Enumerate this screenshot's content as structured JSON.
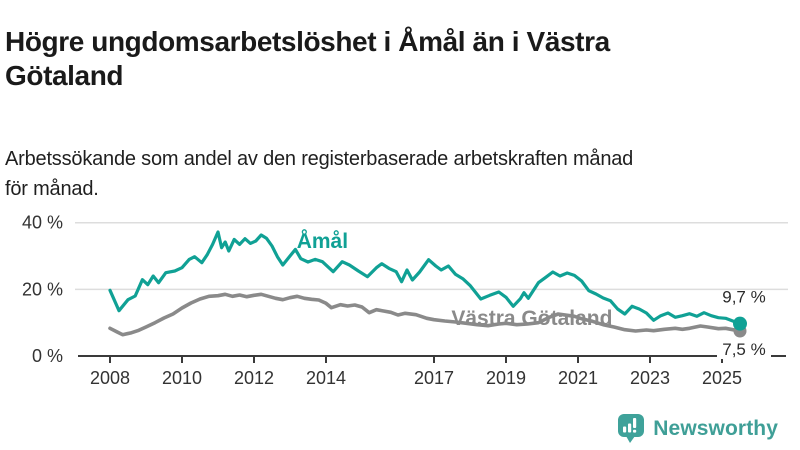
{
  "header": {
    "title": "Högre ungdomsarbetslöshet i Åmål än i Västra Götaland",
    "title_lines": [
      "Högre ungdomsarbetslöshet i Åmål än i Västra",
      "Götaland"
    ],
    "subtitle": "Arbetssökande som andel av den registerbaserade arbetskraften månad för månad.",
    "subtitle_lines": [
      "Arbetssökande som andel av den registerbaserade arbetskraften månad",
      "för månad."
    ]
  },
  "chart_data": {
    "type": "line",
    "title": "Högre ungdomsarbetslöshet i Åmål än i Västra Götaland",
    "xlabel": "",
    "ylabel": "",
    "unit": "%",
    "grid": "horizontal",
    "legend_position": "inline-labels",
    "xlim": [
      2007.3,
      2026.8
    ],
    "ylim": [
      0,
      43
    ],
    "x_ticks": [
      2008,
      2010,
      2012,
      2014,
      2017,
      2019,
      2021,
      2023,
      2025
    ],
    "y_ticks": [
      {
        "value": 0,
        "label": "0 %",
        "gridline": false
      },
      {
        "value": 20,
        "label": "20 %",
        "gridline": true
      },
      {
        "value": 40,
        "label": "40 %",
        "gridline": true
      }
    ],
    "colors": {
      "amal": "#10a195",
      "vastra_gotaland": "#8a8a8a",
      "axis": "#3a3a3a",
      "gridline": "#dddddd",
      "tick_text": "#333333",
      "value_text": "#2b2b2b"
    },
    "series": [
      {
        "name": "Åmål",
        "color": "#10a195",
        "label_pos": {
          "year": 2013.9,
          "pct": 32.4
        },
        "end_label": "9,7 %",
        "end_value": 9.7,
        "points": [
          [
            2008.0,
            19.7
          ],
          [
            2008.25,
            13.6
          ],
          [
            2008.5,
            16.9
          ],
          [
            2008.7,
            18.0
          ],
          [
            2008.9,
            22.9
          ],
          [
            2009.05,
            21.4
          ],
          [
            2009.2,
            24.0
          ],
          [
            2009.35,
            22.0
          ],
          [
            2009.55,
            25.0
          ],
          [
            2009.8,
            25.5
          ],
          [
            2010.0,
            26.5
          ],
          [
            2010.2,
            29.0
          ],
          [
            2010.35,
            29.8
          ],
          [
            2010.55,
            28.0
          ],
          [
            2010.7,
            30.4
          ],
          [
            2010.85,
            33.5
          ],
          [
            2011.0,
            37.2
          ],
          [
            2011.1,
            32.5
          ],
          [
            2011.2,
            34.2
          ],
          [
            2011.3,
            31.5
          ],
          [
            2011.45,
            35.0
          ],
          [
            2011.6,
            33.5
          ],
          [
            2011.75,
            35.2
          ],
          [
            2011.9,
            33.8
          ],
          [
            2012.05,
            34.5
          ],
          [
            2012.2,
            36.3
          ],
          [
            2012.35,
            35.3
          ],
          [
            2012.5,
            33.0
          ],
          [
            2012.65,
            29.8
          ],
          [
            2012.8,
            27.3
          ],
          [
            2013.0,
            30.0
          ],
          [
            2013.15,
            32.0
          ],
          [
            2013.3,
            29.2
          ],
          [
            2013.5,
            28.2
          ],
          [
            2013.7,
            29.0
          ],
          [
            2013.9,
            28.3
          ],
          [
            2014.05,
            26.8
          ],
          [
            2014.2,
            25.3
          ],
          [
            2014.45,
            28.3
          ],
          [
            2014.65,
            27.3
          ],
          [
            2014.9,
            25.5
          ],
          [
            2015.15,
            23.8
          ],
          [
            2015.4,
            26.5
          ],
          [
            2015.55,
            27.7
          ],
          [
            2015.75,
            26.3
          ],
          [
            2015.95,
            25.3
          ],
          [
            2016.1,
            22.3
          ],
          [
            2016.25,
            25.8
          ],
          [
            2016.4,
            22.8
          ],
          [
            2016.6,
            25.2
          ],
          [
            2016.85,
            28.9
          ],
          [
            2017.05,
            27.0
          ],
          [
            2017.2,
            25.8
          ],
          [
            2017.4,
            27.0
          ],
          [
            2017.6,
            24.5
          ],
          [
            2017.8,
            23.2
          ],
          [
            2018.0,
            21.2
          ],
          [
            2018.3,
            17.1
          ],
          [
            2018.55,
            18.2
          ],
          [
            2018.8,
            19.2
          ],
          [
            2019.0,
            17.6
          ],
          [
            2019.2,
            14.9
          ],
          [
            2019.4,
            17.2
          ],
          [
            2019.5,
            19.0
          ],
          [
            2019.62,
            17.3
          ],
          [
            2019.9,
            22.0
          ],
          [
            2020.1,
            23.6
          ],
          [
            2020.3,
            25.2
          ],
          [
            2020.5,
            24.0
          ],
          [
            2020.7,
            24.9
          ],
          [
            2020.9,
            24.2
          ],
          [
            2021.1,
            22.5
          ],
          [
            2021.3,
            19.6
          ],
          [
            2021.5,
            18.6
          ],
          [
            2021.7,
            17.4
          ],
          [
            2021.9,
            16.6
          ],
          [
            2022.1,
            14.1
          ],
          [
            2022.3,
            12.6
          ],
          [
            2022.5,
            14.9
          ],
          [
            2022.7,
            14.1
          ],
          [
            2022.9,
            12.9
          ],
          [
            2023.1,
            10.7
          ],
          [
            2023.3,
            12.1
          ],
          [
            2023.5,
            12.9
          ],
          [
            2023.7,
            11.6
          ],
          [
            2023.9,
            12.1
          ],
          [
            2024.1,
            12.7
          ],
          [
            2024.3,
            11.9
          ],
          [
            2024.5,
            13.0
          ],
          [
            2024.7,
            12.1
          ],
          [
            2024.9,
            11.5
          ],
          [
            2025.1,
            11.3
          ],
          [
            2025.3,
            10.5
          ],
          [
            2025.5,
            9.7
          ]
        ]
      },
      {
        "name": "Västra Götaland",
        "color": "#8a8a8a",
        "label_pos": {
          "year": 2019.72,
          "pct": 9.3
        },
        "end_label": "7,5 %",
        "end_value": 7.5,
        "points": [
          [
            2008.0,
            8.3
          ],
          [
            2008.2,
            7.2
          ],
          [
            2008.35,
            6.4
          ],
          [
            2008.6,
            7.0
          ],
          [
            2008.8,
            7.7
          ],
          [
            2009.0,
            8.7
          ],
          [
            2009.25,
            10.0
          ],
          [
            2009.5,
            11.4
          ],
          [
            2009.75,
            12.6
          ],
          [
            2010.0,
            14.4
          ],
          [
            2010.25,
            15.9
          ],
          [
            2010.5,
            17.1
          ],
          [
            2010.75,
            17.9
          ],
          [
            2011.0,
            18.1
          ],
          [
            2011.2,
            18.5
          ],
          [
            2011.4,
            17.9
          ],
          [
            2011.6,
            18.3
          ],
          [
            2011.8,
            17.8
          ],
          [
            2012.0,
            18.2
          ],
          [
            2012.2,
            18.5
          ],
          [
            2012.4,
            17.9
          ],
          [
            2012.6,
            17.3
          ],
          [
            2012.8,
            16.9
          ],
          [
            2013.0,
            17.5
          ],
          [
            2013.2,
            17.9
          ],
          [
            2013.4,
            17.3
          ],
          [
            2013.6,
            17.0
          ],
          [
            2013.8,
            16.8
          ],
          [
            2014.0,
            15.8
          ],
          [
            2014.15,
            14.5
          ],
          [
            2014.4,
            15.4
          ],
          [
            2014.6,
            15.0
          ],
          [
            2014.8,
            15.3
          ],
          [
            2015.0,
            14.7
          ],
          [
            2015.2,
            13.0
          ],
          [
            2015.4,
            13.9
          ],
          [
            2015.6,
            13.5
          ],
          [
            2015.8,
            13.1
          ],
          [
            2016.0,
            12.3
          ],
          [
            2016.2,
            12.8
          ],
          [
            2016.5,
            12.4
          ],
          [
            2016.8,
            11.3
          ],
          [
            2017.0,
            10.9
          ],
          [
            2017.3,
            10.5
          ],
          [
            2017.6,
            10.2
          ],
          [
            2017.9,
            9.8
          ],
          [
            2018.2,
            9.4
          ],
          [
            2018.5,
            9.1
          ],
          [
            2018.8,
            9.6
          ],
          [
            2019.0,
            9.8
          ],
          [
            2019.3,
            9.4
          ],
          [
            2019.6,
            9.6
          ],
          [
            2019.9,
            10.0
          ],
          [
            2020.2,
            11.6
          ],
          [
            2020.45,
            12.6
          ],
          [
            2020.7,
            12.2
          ],
          [
            2020.9,
            11.9
          ],
          [
            2021.1,
            11.2
          ],
          [
            2021.4,
            10.4
          ],
          [
            2021.7,
            9.4
          ],
          [
            2022.0,
            8.7
          ],
          [
            2022.3,
            7.9
          ],
          [
            2022.6,
            7.5
          ],
          [
            2022.9,
            7.8
          ],
          [
            2023.1,
            7.6
          ],
          [
            2023.4,
            8.0
          ],
          [
            2023.7,
            8.3
          ],
          [
            2023.9,
            8.0
          ],
          [
            2024.1,
            8.3
          ],
          [
            2024.4,
            9.0
          ],
          [
            2024.6,
            8.7
          ],
          [
            2024.9,
            8.2
          ],
          [
            2025.1,
            8.3
          ],
          [
            2025.3,
            7.9
          ],
          [
            2025.5,
            7.5
          ]
        ]
      }
    ]
  },
  "footer": {
    "brand": "Newsworthy",
    "brand_color": "#3f9f97",
    "logo_icon": "bar-chart-speech-bubble"
  }
}
